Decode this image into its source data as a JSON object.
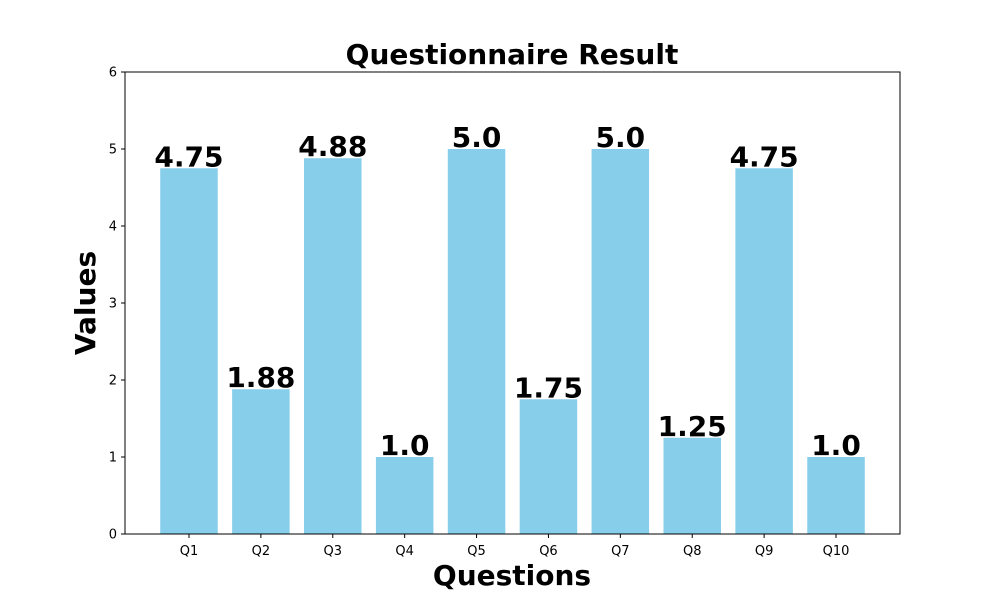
{
  "chart_data": {
    "type": "bar",
    "title": "Questionnaire Result",
    "xlabel": "Questions",
    "ylabel": "Values",
    "categories": [
      "Q1",
      "Q2",
      "Q3",
      "Q4",
      "Q5",
      "Q6",
      "Q7",
      "Q8",
      "Q9",
      "Q10"
    ],
    "values": [
      4.75,
      1.88,
      4.88,
      1.0,
      5.0,
      1.75,
      5.0,
      1.25,
      4.75,
      1.0
    ],
    "value_labels": [
      "4.75",
      "1.88",
      "4.88",
      "1.0",
      "5.0",
      "1.75",
      "5.0",
      "1.25",
      "4.75",
      "1.0"
    ],
    "ylim": [
      0,
      6
    ],
    "yticks": [
      0,
      1,
      2,
      3,
      4,
      5,
      6
    ],
    "grid": false,
    "bar_color": "#87CEEB"
  }
}
